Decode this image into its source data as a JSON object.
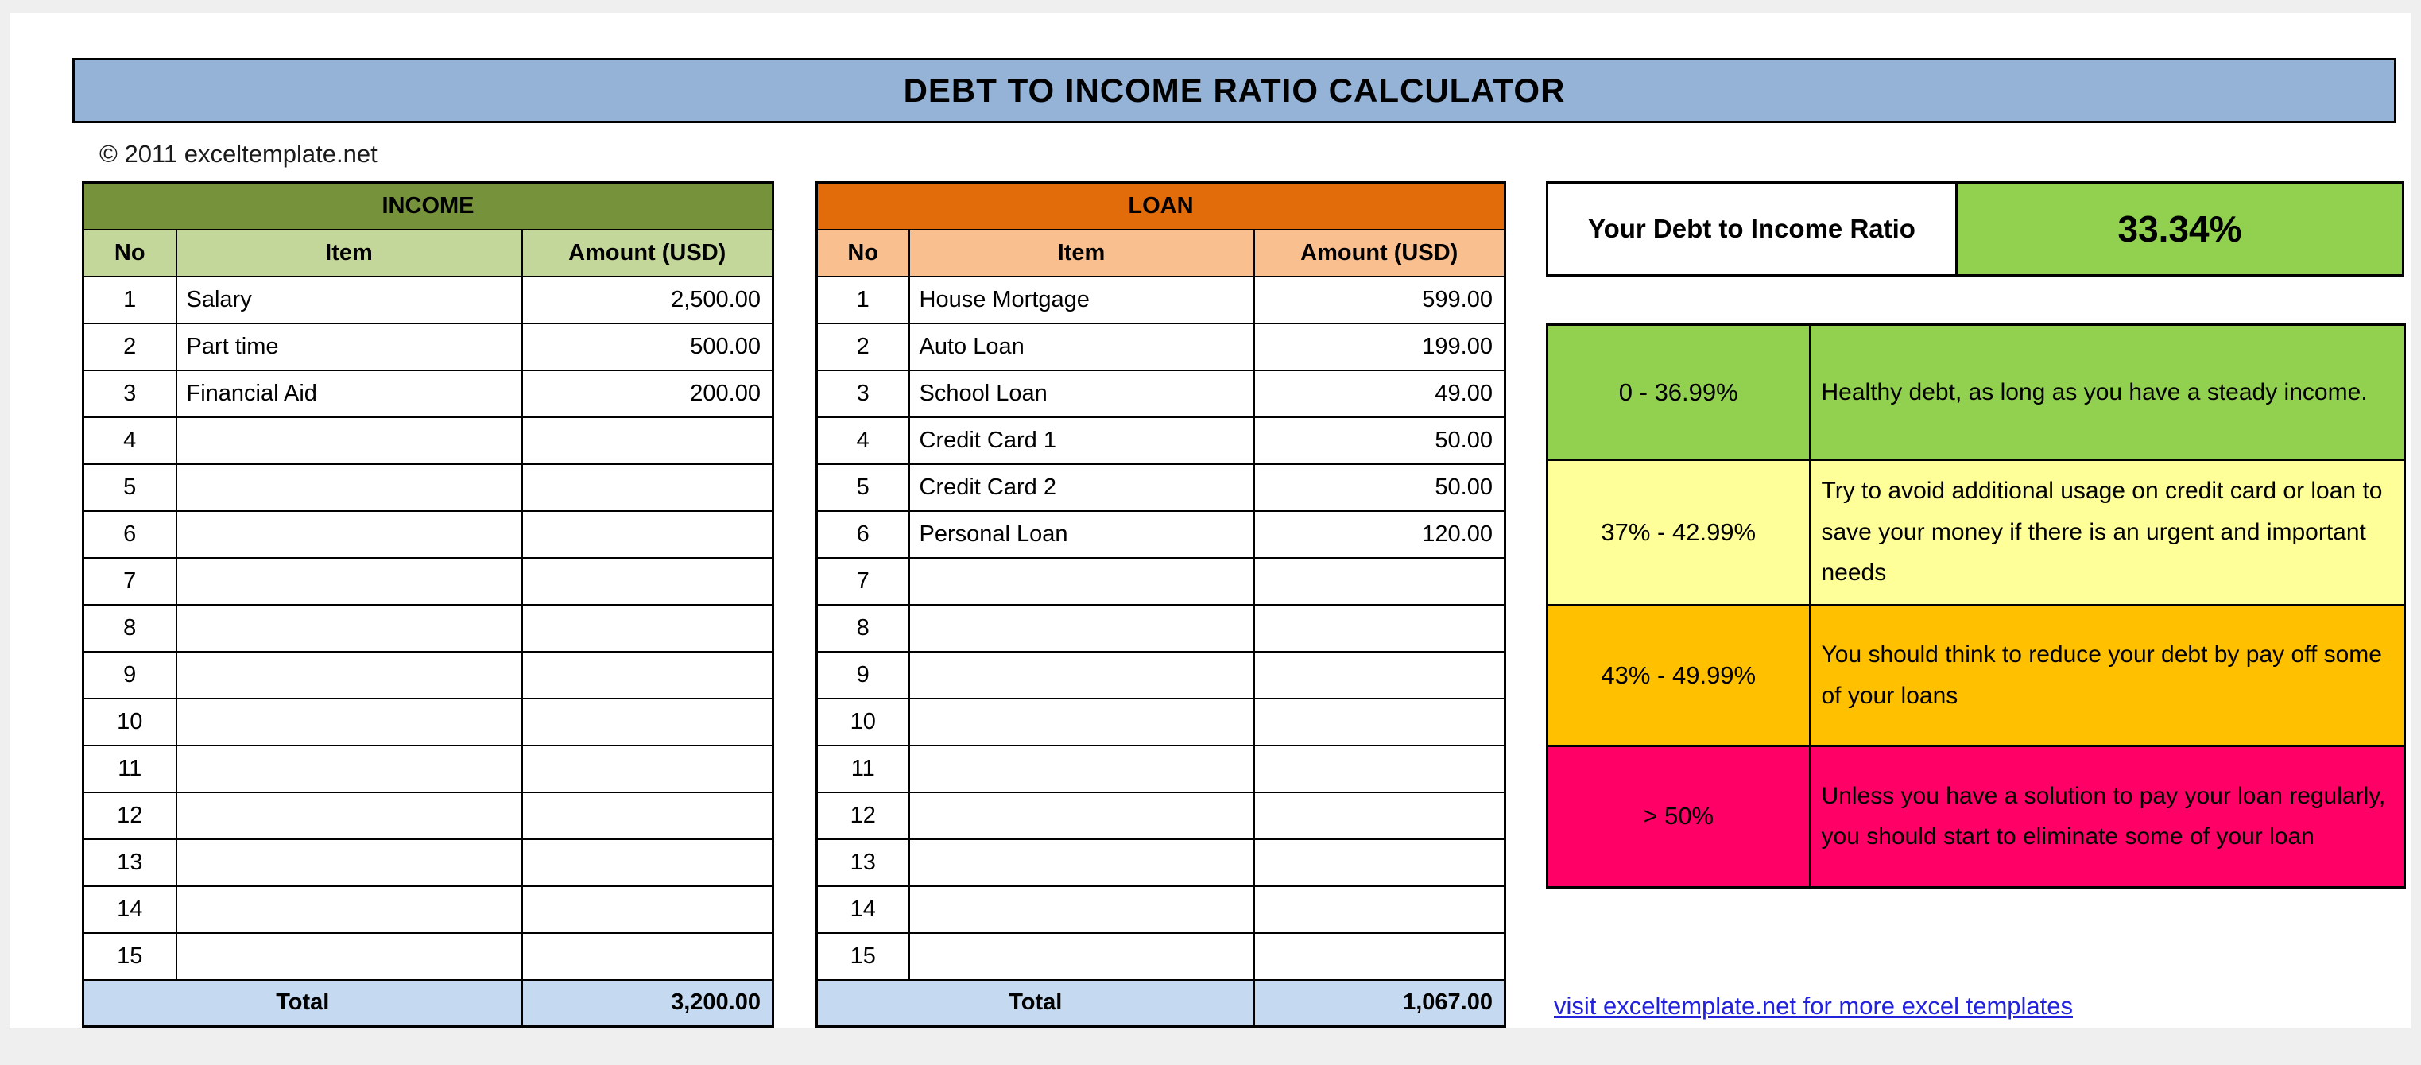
{
  "page": {
    "title": "DEBT TO INCOME RATIO CALCULATOR",
    "copyright": "© 2011 exceltemplate.net",
    "link": "visit exceltemplate.net for more excel templates"
  },
  "income": {
    "title": "INCOME",
    "headers": [
      "No",
      "Item",
      "Amount (USD)"
    ],
    "rows": [
      {
        "no": "1",
        "item": "Salary",
        "amount": "2,500.00"
      },
      {
        "no": "2",
        "item": "Part time",
        "amount": "500.00"
      },
      {
        "no": "3",
        "item": "Financial Aid",
        "amount": "200.00"
      },
      {
        "no": "4",
        "item": "",
        "amount": ""
      },
      {
        "no": "5",
        "item": "",
        "amount": ""
      },
      {
        "no": "6",
        "item": "",
        "amount": ""
      },
      {
        "no": "7",
        "item": "",
        "amount": ""
      },
      {
        "no": "8",
        "item": "",
        "amount": ""
      },
      {
        "no": "9",
        "item": "",
        "amount": ""
      },
      {
        "no": "10",
        "item": "",
        "amount": ""
      },
      {
        "no": "11",
        "item": "",
        "amount": ""
      },
      {
        "no": "12",
        "item": "",
        "amount": ""
      },
      {
        "no": "13",
        "item": "",
        "amount": ""
      },
      {
        "no": "14",
        "item": "",
        "amount": ""
      },
      {
        "no": "15",
        "item": "",
        "amount": ""
      }
    ],
    "total_label": "Total",
    "total": "3,200.00"
  },
  "loan": {
    "title": "LOAN",
    "headers": [
      "No",
      "Item",
      "Amount (USD)"
    ],
    "rows": [
      {
        "no": "1",
        "item": "House Mortgage",
        "amount": "599.00"
      },
      {
        "no": "2",
        "item": "Auto Loan",
        "amount": "199.00"
      },
      {
        "no": "3",
        "item": "School Loan",
        "amount": "49.00"
      },
      {
        "no": "4",
        "item": "Credit Card 1",
        "amount": "50.00"
      },
      {
        "no": "5",
        "item": "Credit Card 2",
        "amount": "50.00"
      },
      {
        "no": "6",
        "item": "Personal Loan",
        "amount": "120.00"
      },
      {
        "no": "7",
        "item": "",
        "amount": ""
      },
      {
        "no": "8",
        "item": "",
        "amount": ""
      },
      {
        "no": "9",
        "item": "",
        "amount": ""
      },
      {
        "no": "10",
        "item": "",
        "amount": ""
      },
      {
        "no": "11",
        "item": "",
        "amount": ""
      },
      {
        "no": "12",
        "item": "",
        "amount": ""
      },
      {
        "no": "13",
        "item": "",
        "amount": ""
      },
      {
        "no": "14",
        "item": "",
        "amount": ""
      },
      {
        "no": "15",
        "item": "",
        "amount": ""
      }
    ],
    "total_label": "Total",
    "total": "1,067.00"
  },
  "ratio": {
    "label": "Your Debt to Income Ratio",
    "value": "33.34%"
  },
  "legend": {
    "rows": [
      {
        "range": "0 - 36.99%",
        "color": "#92D050",
        "text": "Healthy debt, as long as you have a steady income."
      },
      {
        "range": "37% - 42.99%",
        "color": "#FFFF99",
        "text": "Try to avoid additional usage on credit card or loan to save your money if there is an urgent and important needs"
      },
      {
        "range": "43% - 49.99%",
        "color": "#FFC000",
        "text": "You should think to reduce your debt by pay off some of your loans"
      },
      {
        "range": "> 50%",
        "color": "#FF0066",
        "text": "Unless you have a solution to pay your loan regularly, you should start to eliminate some of your loan"
      }
    ]
  },
  "colors": {
    "title_bar": "#95B3D7",
    "income_header": "#76933C",
    "income_subhead": "#C4D79B",
    "loan_header": "#E26B0A",
    "loan_subhead": "#FABF8F",
    "total_row": "#C5D9F1",
    "ratio_green": "#92D050",
    "link": "#2222DD",
    "border": "#000000"
  }
}
